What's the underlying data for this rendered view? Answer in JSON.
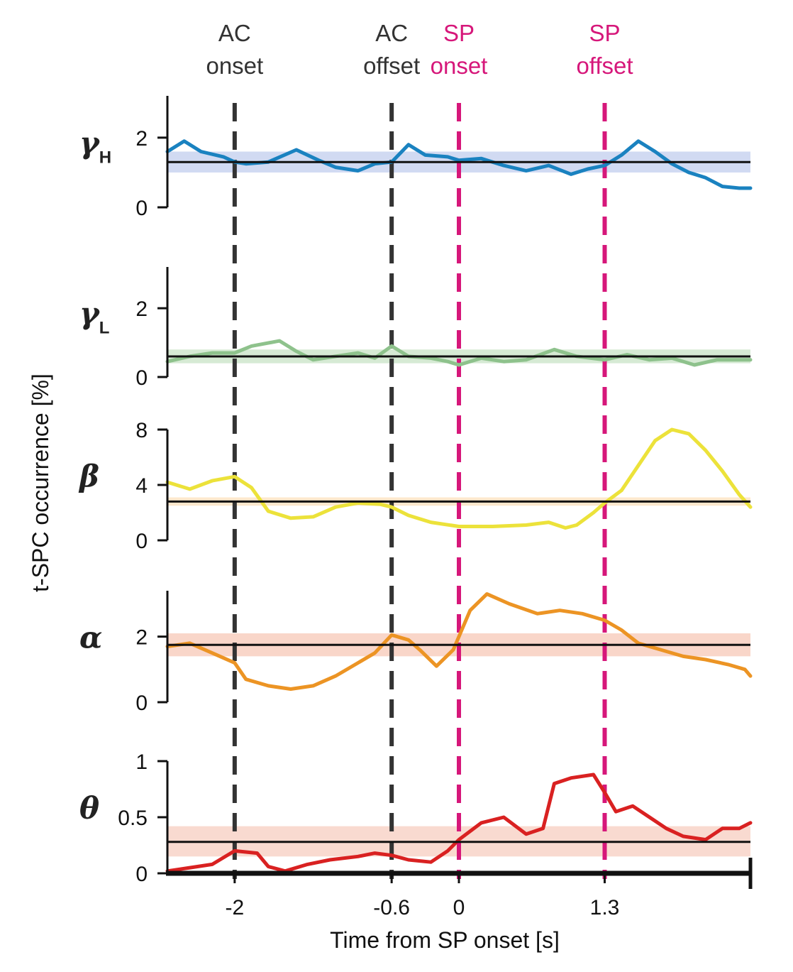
{
  "chart_data": {
    "type": "line",
    "xlabel": "Time from SP onset [s]",
    "ylabel": "t-SPC occurrence [%]",
    "xlim": [
      -2.6,
      2.6
    ],
    "xticks": [
      {
        "value": -2,
        "label": "-2"
      },
      {
        "value": -0.6,
        "label": "-0.6"
      },
      {
        "value": 0,
        "label": "0"
      },
      {
        "value": 1.3,
        "label": "1.3"
      }
    ],
    "events": [
      {
        "x": -2,
        "line1": "AC",
        "line2": "onset",
        "color": "#333333"
      },
      {
        "x": -0.6,
        "line1": "AC",
        "line2": "offset",
        "color": "#333333"
      },
      {
        "x": 0,
        "line1": "SP",
        "line2": "onset",
        "color": "#d6177a"
      },
      {
        "x": 1.3,
        "line1": "SP",
        "line2": "offset",
        "color": "#d6177a"
      }
    ],
    "panels": [
      {
        "band": "γ",
        "band_sub": "H",
        "color": "#1a82c0",
        "band_fill": "#c9d4f0",
        "ylim": [
          0,
          3.2
        ],
        "yticks": [
          {
            "value": 0,
            "label": "0"
          },
          {
            "value": 2,
            "label": "2"
          }
        ],
        "baseline": 1.3,
        "band_range": [
          1.0,
          1.6
        ],
        "series": [
          [
            -2.6,
            1.6
          ],
          [
            -2.45,
            1.9
          ],
          [
            -2.3,
            1.6
          ],
          [
            -2.1,
            1.45
          ],
          [
            -2.0,
            1.3
          ],
          [
            -1.9,
            1.25
          ],
          [
            -1.7,
            1.3
          ],
          [
            -1.45,
            1.65
          ],
          [
            -1.25,
            1.35
          ],
          [
            -1.1,
            1.15
          ],
          [
            -0.9,
            1.05
          ],
          [
            -0.75,
            1.25
          ],
          [
            -0.6,
            1.3
          ],
          [
            -0.45,
            1.8
          ],
          [
            -0.3,
            1.5
          ],
          [
            -0.1,
            1.45
          ],
          [
            0.0,
            1.35
          ],
          [
            0.2,
            1.4
          ],
          [
            0.4,
            1.2
          ],
          [
            0.6,
            1.05
          ],
          [
            0.8,
            1.2
          ],
          [
            1.0,
            0.95
          ],
          [
            1.15,
            1.1
          ],
          [
            1.3,
            1.2
          ],
          [
            1.45,
            1.5
          ],
          [
            1.6,
            1.9
          ],
          [
            1.75,
            1.6
          ],
          [
            1.9,
            1.25
          ],
          [
            2.05,
            1.0
          ],
          [
            2.2,
            0.85
          ],
          [
            2.35,
            0.6
          ],
          [
            2.5,
            0.55
          ],
          [
            2.6,
            0.55
          ]
        ]
      },
      {
        "band": "γ",
        "band_sub": "L",
        "color": "#8ec28c",
        "band_fill": "#cfe6cc",
        "ylim": [
          0,
          3.2
        ],
        "yticks": [
          {
            "value": 0,
            "label": "0"
          },
          {
            "value": 2,
            "label": "2"
          }
        ],
        "baseline": 0.6,
        "band_range": [
          0.4,
          0.8
        ],
        "series": [
          [
            -2.6,
            0.45
          ],
          [
            -2.4,
            0.6
          ],
          [
            -2.2,
            0.7
          ],
          [
            -2.0,
            0.7
          ],
          [
            -1.85,
            0.9
          ],
          [
            -1.6,
            1.05
          ],
          [
            -1.45,
            0.75
          ],
          [
            -1.3,
            0.5
          ],
          [
            -1.1,
            0.6
          ],
          [
            -0.9,
            0.7
          ],
          [
            -0.75,
            0.55
          ],
          [
            -0.6,
            0.9
          ],
          [
            -0.45,
            0.6
          ],
          [
            -0.25,
            0.55
          ],
          [
            -0.1,
            0.45
          ],
          [
            0.0,
            0.35
          ],
          [
            0.2,
            0.55
          ],
          [
            0.4,
            0.45
          ],
          [
            0.6,
            0.5
          ],
          [
            0.85,
            0.8
          ],
          [
            1.05,
            0.6
          ],
          [
            1.3,
            0.5
          ],
          [
            1.5,
            0.65
          ],
          [
            1.7,
            0.5
          ],
          [
            1.9,
            0.55
          ],
          [
            2.1,
            0.35
          ],
          [
            2.3,
            0.5
          ],
          [
            2.6,
            0.5
          ]
        ]
      },
      {
        "band": "β",
        "band_sub": "",
        "color": "#ece23a",
        "band_fill": "#fde4c4",
        "ylim": [
          0,
          8
        ],
        "yticks": [
          {
            "value": 0,
            "label": "0"
          },
          {
            "value": 4,
            "label": "4"
          },
          {
            "value": 8,
            "label": "8"
          }
        ],
        "baseline": 2.8,
        "band_range": [
          2.5,
          3.1
        ],
        "series": [
          [
            -2.6,
            4.2
          ],
          [
            -2.4,
            3.7
          ],
          [
            -2.2,
            4.3
          ],
          [
            -2.0,
            4.6
          ],
          [
            -1.85,
            3.8
          ],
          [
            -1.7,
            2.1
          ],
          [
            -1.5,
            1.6
          ],
          [
            -1.3,
            1.7
          ],
          [
            -1.1,
            2.4
          ],
          [
            -0.9,
            2.7
          ],
          [
            -0.7,
            2.6
          ],
          [
            -0.6,
            2.4
          ],
          [
            -0.45,
            1.8
          ],
          [
            -0.25,
            1.3
          ],
          [
            0.0,
            1.0
          ],
          [
            0.3,
            1.0
          ],
          [
            0.6,
            1.1
          ],
          [
            0.8,
            1.3
          ],
          [
            0.95,
            0.9
          ],
          [
            1.05,
            1.1
          ],
          [
            1.2,
            2.0
          ],
          [
            1.3,
            2.7
          ],
          [
            1.45,
            3.6
          ],
          [
            1.6,
            5.4
          ],
          [
            1.75,
            7.2
          ],
          [
            1.9,
            8.0
          ],
          [
            2.05,
            7.7
          ],
          [
            2.2,
            6.5
          ],
          [
            2.35,
            5.0
          ],
          [
            2.5,
            3.3
          ],
          [
            2.6,
            2.4
          ]
        ]
      },
      {
        "band": "α",
        "band_sub": "",
        "color": "#ec9424",
        "band_fill": "#f8cfbf",
        "ylim": [
          0,
          3.4
        ],
        "yticks": [
          {
            "value": 0,
            "label": "0"
          },
          {
            "value": 2,
            "label": "2"
          }
        ],
        "baseline": 1.75,
        "band_range": [
          1.4,
          2.1
        ],
        "series": [
          [
            -2.6,
            1.7
          ],
          [
            -2.4,
            1.8
          ],
          [
            -2.2,
            1.5
          ],
          [
            -2.0,
            1.2
          ],
          [
            -1.9,
            0.7
          ],
          [
            -1.7,
            0.5
          ],
          [
            -1.5,
            0.4
          ],
          [
            -1.3,
            0.5
          ],
          [
            -1.1,
            0.8
          ],
          [
            -0.9,
            1.2
          ],
          [
            -0.75,
            1.5
          ],
          [
            -0.6,
            2.05
          ],
          [
            -0.45,
            1.9
          ],
          [
            -0.35,
            1.6
          ],
          [
            -0.2,
            1.1
          ],
          [
            -0.05,
            1.6
          ],
          [
            0.1,
            2.8
          ],
          [
            0.25,
            3.3
          ],
          [
            0.45,
            3.0
          ],
          [
            0.7,
            2.7
          ],
          [
            0.9,
            2.8
          ],
          [
            1.1,
            2.7
          ],
          [
            1.3,
            2.5
          ],
          [
            1.45,
            2.2
          ],
          [
            1.6,
            1.8
          ],
          [
            1.8,
            1.6
          ],
          [
            2.0,
            1.4
          ],
          [
            2.2,
            1.3
          ],
          [
            2.4,
            1.15
          ],
          [
            2.55,
            1.0
          ],
          [
            2.6,
            0.8
          ]
        ]
      },
      {
        "band": "θ",
        "band_sub": "",
        "color": "#d92121",
        "band_fill": "#f8d3c8",
        "ylim": [
          0,
          1
        ],
        "yticks": [
          {
            "value": 0,
            "label": "0"
          },
          {
            "value": 0.5,
            "label": "0.5"
          },
          {
            "value": 1,
            "label": "1"
          }
        ],
        "baseline": 0.28,
        "band_range": [
          0.15,
          0.42
        ],
        "series": [
          [
            -2.6,
            0.02
          ],
          [
            -2.4,
            0.05
          ],
          [
            -2.2,
            0.08
          ],
          [
            -2.0,
            0.2
          ],
          [
            -1.8,
            0.18
          ],
          [
            -1.7,
            0.06
          ],
          [
            -1.55,
            0.02
          ],
          [
            -1.35,
            0.08
          ],
          [
            -1.15,
            0.12
          ],
          [
            -0.9,
            0.15
          ],
          [
            -0.75,
            0.18
          ],
          [
            -0.6,
            0.16
          ],
          [
            -0.45,
            0.12
          ],
          [
            -0.25,
            0.1
          ],
          [
            -0.1,
            0.2
          ],
          [
            0.0,
            0.3
          ],
          [
            0.2,
            0.45
          ],
          [
            0.4,
            0.5
          ],
          [
            0.6,
            0.35
          ],
          [
            0.75,
            0.4
          ],
          [
            0.85,
            0.8
          ],
          [
            1.0,
            0.85
          ],
          [
            1.2,
            0.88
          ],
          [
            1.3,
            0.72
          ],
          [
            1.4,
            0.55
          ],
          [
            1.55,
            0.6
          ],
          [
            1.7,
            0.5
          ],
          [
            1.85,
            0.4
          ],
          [
            2.0,
            0.33
          ],
          [
            2.2,
            0.3
          ],
          [
            2.35,
            0.4
          ],
          [
            2.5,
            0.4
          ],
          [
            2.6,
            0.45
          ]
        ]
      }
    ]
  }
}
